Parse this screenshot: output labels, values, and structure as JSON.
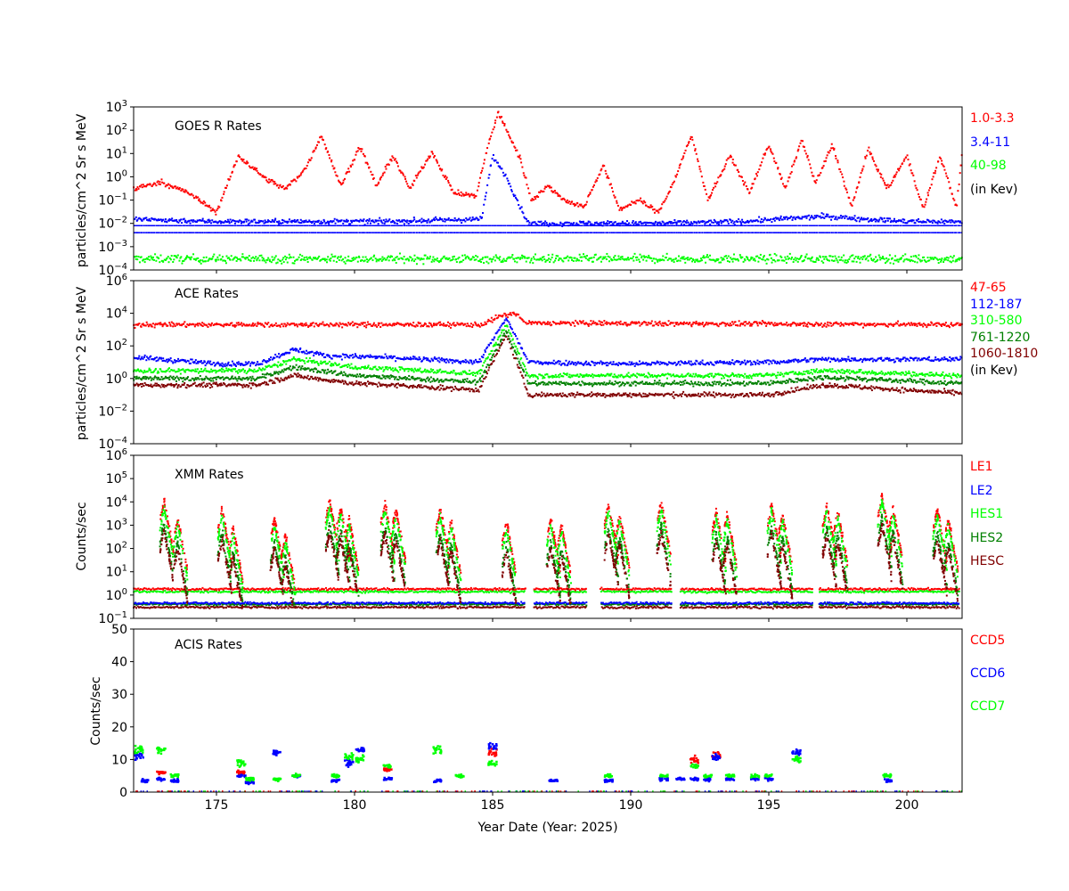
{
  "chart_data": [
    {
      "type": "scatter",
      "title": "GOES R Rates",
      "ylabel": "particles/cm^2 Sr s MeV",
      "yscale": "log",
      "ylim": [
        0.0001,
        1000
      ],
      "yticks": [
        "10^-4",
        "10^-3",
        "10^-2",
        "10^-1",
        "10^0",
        "10^1",
        "10^2",
        "10^3"
      ],
      "xlim": [
        172,
        202
      ],
      "legend": [
        {
          "label": "1.0-3.3",
          "color": "#ff0000"
        },
        {
          "label": "3.4-11",
          "color": "#0000ff"
        },
        {
          "label": "40-98",
          "color": "#00ff00"
        },
        {
          "label": "(in Kev)",
          "color": "#000000"
        }
      ],
      "series": [
        {
          "color": "#ff0000",
          "x": [
            172,
            173,
            174,
            175,
            175.8,
            176.8,
            177.5,
            178.2,
            178.8,
            179.5,
            180.2,
            180.8,
            181.4,
            182,
            182.8,
            183.6,
            184.4,
            184.8,
            185.2,
            185.6,
            186,
            186.4,
            187,
            187.6,
            188.3,
            189,
            189.6,
            190.3,
            191,
            191.5,
            192.2,
            192.8,
            193.6,
            194.3,
            195,
            195.6,
            196.2,
            196.7,
            197.3,
            198,
            198.6,
            199.3,
            200,
            200.6,
            201.2,
            201.8,
            202
          ],
          "y": [
            0.3,
            0.6,
            0.2,
            0.03,
            8,
            0.8,
            0.3,
            2,
            60,
            0.4,
            20,
            0.4,
            8,
            0.3,
            12,
            0.2,
            0.15,
            15,
            600,
            60,
            6,
            0.1,
            0.4,
            0.1,
            0.05,
            3,
            0.04,
            0.1,
            0.03,
            0.4,
            60,
            0.1,
            8,
            0.2,
            25,
            0.3,
            40,
            0.5,
            25,
            0.05,
            15,
            0.3,
            8,
            0.04,
            8,
            0.05,
            10
          ]
        },
        {
          "color": "#0000ff",
          "x": [
            172,
            175,
            178,
            181,
            184.6,
            185,
            185.5,
            186,
            186.3,
            188,
            191,
            194,
            197,
            200,
            202
          ],
          "y": [
            0.015,
            0.012,
            0.012,
            0.012,
            0.015,
            8,
            1,
            0.05,
            0.01,
            0.01,
            0.01,
            0.012,
            0.02,
            0.012,
            0.012
          ]
        },
        {
          "color": "#00ff00",
          "x": [
            172,
            187,
            202
          ],
          "y": [
            0.0003,
            0.0003,
            0.0003
          ]
        }
      ]
    },
    {
      "type": "scatter",
      "title": "ACE Rates",
      "ylabel": "particles/cm^2 Sr s MeV",
      "yscale": "log",
      "ylim": [
        0.0001,
        1000000
      ],
      "yticks": [
        "10^-4",
        "10^-2",
        "10^0",
        "10^2",
        "10^4",
        "10^6"
      ],
      "xlim": [
        172,
        202
      ],
      "legend": [
        {
          "label": "47-65",
          "color": "#ff0000"
        },
        {
          "label": "112-187",
          "color": "#0000ff"
        },
        {
          "label": "310-580",
          "color": "#00ff00"
        },
        {
          "label": "761-1220",
          "color": "#008000"
        },
        {
          "label": "1060-1810",
          "color": "#800000"
        },
        {
          "label": "(in Kev)",
          "color": "#000000"
        }
      ],
      "series": [
        {
          "color": "#ff0000",
          "x": [
            172,
            184.6,
            185.2,
            185.8,
            186.2,
            202
          ],
          "y": [
            2000,
            2000,
            6000,
            10000,
            2500,
            2000
          ]
        },
        {
          "color": "#0000ff",
          "x": [
            172,
            175,
            176.5,
            177.8,
            179,
            181,
            184.5,
            185.5,
            186.3,
            190,
            195,
            197,
            200,
            202
          ],
          "y": [
            20,
            8,
            8,
            60,
            25,
            20,
            10,
            5000,
            10,
            8,
            10,
            15,
            15,
            15
          ]
        },
        {
          "color": "#00ff00",
          "x": [
            172,
            176.5,
            177.8,
            180,
            184.5,
            185.5,
            186.3,
            195,
            197,
            202
          ],
          "y": [
            3,
            3,
            15,
            5,
            2,
            2000,
            1.5,
            1.5,
            3,
            1.5
          ]
        },
        {
          "color": "#008000",
          "x": [
            172,
            176.5,
            177.8,
            180,
            184.5,
            185.5,
            186.3,
            195,
            197,
            202
          ],
          "y": [
            1,
            1,
            5,
            1.5,
            0.6,
            800,
            0.5,
            0.5,
            1.2,
            0.5
          ]
        },
        {
          "color": "#800000",
          "x": [
            172,
            176.5,
            177.8,
            180,
            184.5,
            185.5,
            186.3,
            195,
            197,
            202
          ],
          "y": [
            0.4,
            0.4,
            1.5,
            0.5,
            0.2,
            500,
            0.1,
            0.1,
            0.4,
            0.12
          ]
        }
      ]
    },
    {
      "type": "scatter",
      "title": "XMM Rates",
      "ylabel": "Counts/sec",
      "yscale": "log",
      "ylim": [
        0.1,
        1000000
      ],
      "yticks": [
        "10^-1",
        "10^0",
        "10^1",
        "10^2",
        "10^3",
        "10^4",
        "10^5",
        "10^6"
      ],
      "xlim": [
        172,
        202
      ],
      "legend": [
        {
          "label": "LE1",
          "color": "#ff0000"
        },
        {
          "label": "LE2",
          "color": "#0000ff"
        },
        {
          "label": "HES1",
          "color": "#00ff00"
        },
        {
          "label": "HES2",
          "color": "#008000"
        },
        {
          "label": "HESC",
          "color": "#800000"
        }
      ],
      "peaks_x": [
        173.1,
        173.6,
        175.2,
        175.6,
        177.1,
        177.5,
        179.1,
        179.5,
        179.8,
        181.1,
        181.5,
        183.1,
        183.5,
        185.5,
        187.1,
        187.5,
        189.2,
        189.6,
        191.1,
        193.1,
        193.5,
        195.1,
        195.5,
        197.1,
        197.5,
        199.1,
        199.5,
        201.1,
        201.5
      ],
      "peaks_y": [
        12000,
        2000,
        5000,
        800,
        2000,
        400,
        12000,
        6000,
        2000,
        9000,
        5000,
        5000,
        1500,
        1500,
        2000,
        1000,
        8000,
        3000,
        10000,
        4000,
        3000,
        8000,
        3000,
        8000,
        4000,
        20000,
        6000,
        5000,
        2000
      ],
      "baselines": {
        "LE1": 1.8,
        "HES1": 1.4,
        "LE2": 0.45,
        "HES2": 0.4,
        "HESC": 0.3
      }
    },
    {
      "type": "scatter",
      "title": "ACIS Rates",
      "ylabel": "Counts/sec",
      "ylim": [
        0,
        50
      ],
      "yticks": [
        "0",
        "10",
        "20",
        "30",
        "40",
        "50"
      ],
      "xlim": [
        172,
        202
      ],
      "xlabel": "Year Date (Year: 2025)",
      "xticks": [
        "175",
        "180",
        "185",
        "190",
        "195",
        "200"
      ],
      "legend": [
        {
          "label": "CCD5",
          "color": "#ff0000"
        },
        {
          "label": "CCD6",
          "color": "#0000ff"
        },
        {
          "label": "CCD7",
          "color": "#00ff00"
        }
      ],
      "groups": [
        {
          "x": 172.2,
          "ccd6": 11,
          "ccd7": 13,
          "ccd5": 0
        },
        {
          "x": 172.4,
          "ccd6": 3.5,
          "ccd7": 0,
          "ccd5": 0
        },
        {
          "x": 173.0,
          "ccd6": 4,
          "ccd7": 13,
          "ccd5": 6
        },
        {
          "x": 173.5,
          "ccd6": 3.5,
          "ccd7": 5,
          "ccd5": 0
        },
        {
          "x": 175.9,
          "ccd6": 5,
          "ccd7": 9,
          "ccd5": 6
        },
        {
          "x": 176.2,
          "ccd6": 3,
          "ccd7": 4,
          "ccd5": 0
        },
        {
          "x": 177.2,
          "ccd6": 12,
          "ccd7": 4,
          "ccd5": 0
        },
        {
          "x": 177.9,
          "ccd6": 5,
          "ccd7": 5,
          "ccd5": 0
        },
        {
          "x": 179.3,
          "ccd6": 3.5,
          "ccd7": 5,
          "ccd5": 0
        },
        {
          "x": 179.8,
          "ccd6": 9,
          "ccd7": 11,
          "ccd5": 0
        },
        {
          "x": 180.2,
          "ccd6": 13,
          "ccd7": 10,
          "ccd5": 0
        },
        {
          "x": 181.2,
          "ccd6": 4,
          "ccd7": 8,
          "ccd5": 7
        },
        {
          "x": 183.0,
          "ccd6": 3.5,
          "ccd7": 13,
          "ccd5": 0
        },
        {
          "x": 183.8,
          "ccd6": 0,
          "ccd7": 5,
          "ccd5": 0
        },
        {
          "x": 185.0,
          "ccd6": 14,
          "ccd7": 9,
          "ccd5": 12
        },
        {
          "x": 187.2,
          "ccd6": 3.5,
          "ccd7": 0,
          "ccd5": 0
        },
        {
          "x": 189.2,
          "ccd6": 3.5,
          "ccd7": 5,
          "ccd5": 0
        },
        {
          "x": 191.2,
          "ccd6": 4,
          "ccd7": 5,
          "ccd5": 0
        },
        {
          "x": 191.8,
          "ccd6": 4,
          "ccd7": 0,
          "ccd5": 0
        },
        {
          "x": 192.3,
          "ccd6": 4,
          "ccd7": 8,
          "ccd5": 10
        },
        {
          "x": 192.8,
          "ccd6": 4,
          "ccd7": 5,
          "ccd5": 0
        },
        {
          "x": 193.1,
          "ccd6": 11,
          "ccd7": 0,
          "ccd5": 11
        },
        {
          "x": 193.6,
          "ccd6": 4,
          "ccd7": 5,
          "ccd5": 0
        },
        {
          "x": 194.5,
          "ccd6": 4,
          "ccd7": 5,
          "ccd5": 0
        },
        {
          "x": 195.0,
          "ccd6": 4,
          "ccd7": 5,
          "ccd5": 0
        },
        {
          "x": 196.0,
          "ccd6": 12,
          "ccd7": 10,
          "ccd5": 0
        },
        {
          "x": 199.3,
          "ccd6": 3.5,
          "ccd7": 5,
          "ccd5": 0
        }
      ]
    }
  ]
}
